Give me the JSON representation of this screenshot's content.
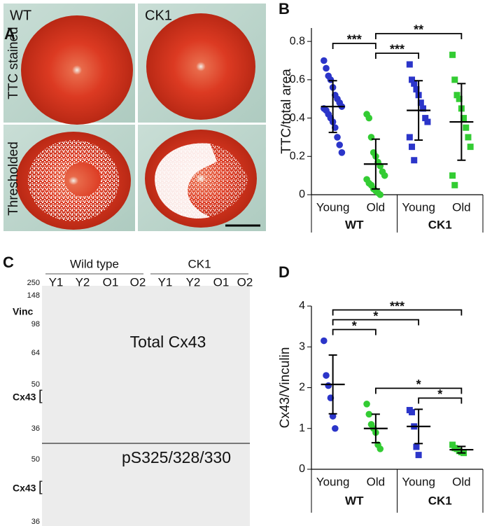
{
  "panels": {
    "A": {
      "label": "A",
      "columns": [
        "WT",
        "CK1"
      ],
      "rows": [
        "TTC stained",
        "Thresholded"
      ]
    },
    "C": {
      "label": "C",
      "groups": [
        "Wild type",
        "CK1"
      ],
      "lanes": [
        "Y1",
        "Y2",
        "O1",
        "O2",
        "Y1",
        "Y2",
        "O1",
        "O2"
      ],
      "markers": [
        250,
        148,
        98,
        64,
        50,
        36
      ],
      "top_blot": {
        "band_label": "Vinc",
        "title": "Total Cx43",
        "target": "Cx43"
      },
      "bottom_blot": {
        "title": "pS325/328/330",
        "markers": [
          50,
          36
        ],
        "target": "Cx43"
      }
    }
  },
  "chart_data": [
    {
      "type": "strip",
      "panel": "B",
      "ylabel": "TTC/total area",
      "categories": [
        "Young",
        "Old",
        "Young",
        "Old"
      ],
      "group_labels": [
        "WT",
        "CK1"
      ],
      "colors": [
        "#2b35c9",
        "#33cc33",
        "#2b35c9",
        "#33cc33"
      ],
      "markers": [
        "circle",
        "circle",
        "square",
        "square"
      ],
      "points": [
        [
          0.7,
          0.66,
          0.62,
          0.6,
          0.56,
          0.52,
          0.5,
          0.48,
          0.46,
          0.45,
          0.44,
          0.42,
          0.4,
          0.38,
          0.35,
          0.3,
          0.26,
          0.22
        ],
        [
          0.42,
          0.4,
          0.3,
          0.22,
          0.2,
          0.17,
          0.15,
          0.12,
          0.1,
          0.08,
          0.06,
          0.05,
          0.03,
          0.02,
          0.01,
          0.0
        ],
        [
          0.68,
          0.6,
          0.58,
          0.55,
          0.52,
          0.48,
          0.45,
          0.4,
          0.38,
          0.3,
          0.25,
          0.18
        ],
        [
          0.73,
          0.6,
          0.52,
          0.5,
          0.45,
          0.4,
          0.35,
          0.3,
          0.25,
          0.1,
          0.05
        ]
      ],
      "means": [
        0.46,
        0.16,
        0.44,
        0.38
      ],
      "sd": [
        0.135,
        0.13,
        0.155,
        0.2
      ],
      "ylim": [
        0,
        0.87
      ],
      "yticks": [
        0,
        0.2,
        0.4,
        0.6,
        0.8
      ],
      "comparisons": [
        {
          "between": [
            1,
            2
          ],
          "label": "***"
        },
        {
          "between": [
            0,
            1
          ],
          "label": "***"
        },
        {
          "between": [
            1,
            3
          ],
          "label": "**"
        }
      ]
    },
    {
      "type": "strip",
      "panel": "D",
      "ylabel": "Cx43/Vinculin",
      "categories": [
        "Young",
        "Old",
        "Young",
        "Old"
      ],
      "group_labels": [
        "WT",
        "CK1"
      ],
      "colors": [
        "#2b35c9",
        "#33cc33",
        "#2b35c9",
        "#33cc33"
      ],
      "markers": [
        "circle",
        "circle",
        "square",
        "square"
      ],
      "points": [
        [
          3.15,
          2.3,
          2.05,
          1.75,
          1.3,
          1.0
        ],
        [
          1.6,
          1.35,
          1.1,
          1.0,
          0.9,
          0.6,
          0.5
        ],
        [
          1.45,
          1.4,
          1.05,
          0.55,
          0.35
        ],
        [
          0.6,
          0.52,
          0.5,
          0.45,
          0.42,
          0.4
        ]
      ],
      "means": [
        2.08,
        1.0,
        1.05,
        0.48
      ],
      "sd": [
        0.72,
        0.35,
        0.42,
        0.08
      ],
      "ylim": [
        0,
        4
      ],
      "yticks": [
        0,
        1,
        2,
        3,
        4
      ],
      "comparisons": [
        {
          "between": [
            2,
            3
          ],
          "label": "*"
        },
        {
          "between": [
            1,
            3
          ],
          "label": "*"
        },
        {
          "between": [
            0,
            1
          ],
          "label": "*"
        },
        {
          "between": [
            0,
            2
          ],
          "label": "*"
        },
        {
          "between": [
            0,
            3
          ],
          "label": "***"
        }
      ]
    }
  ]
}
